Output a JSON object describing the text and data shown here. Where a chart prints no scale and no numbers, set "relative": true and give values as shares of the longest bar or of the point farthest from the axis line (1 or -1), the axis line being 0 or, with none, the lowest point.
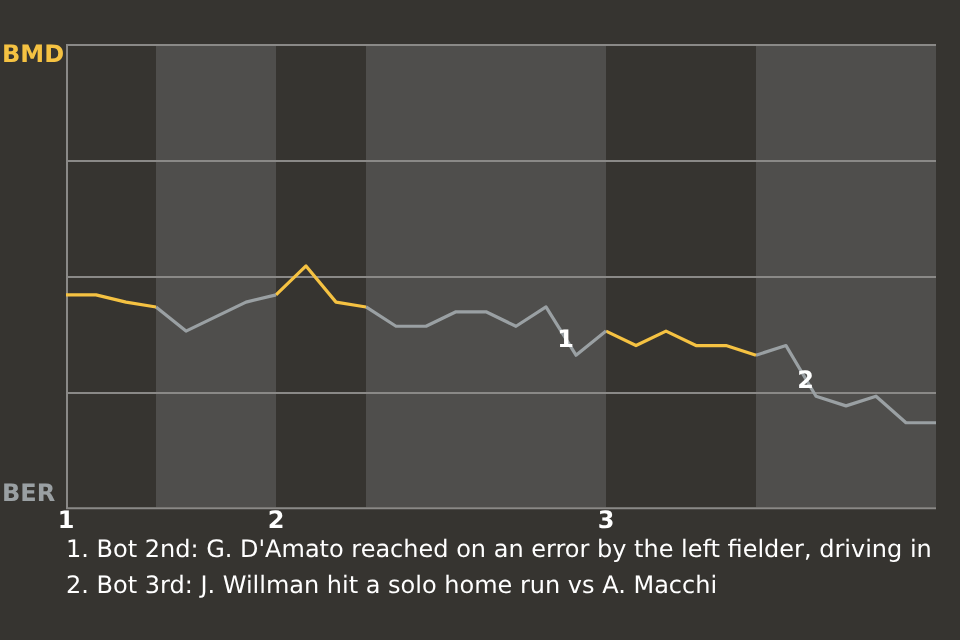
{
  "chart_data": {
    "type": "line",
    "relative": true,
    "categories": [
      "1",
      null,
      null,
      null,
      null,
      null,
      null,
      "2",
      null,
      null,
      null,
      null,
      null,
      null,
      null,
      null,
      null,
      null,
      "3",
      null,
      null,
      null,
      null,
      null,
      null,
      null,
      null,
      null,
      null,
      null
    ],
    "legend": false,
    "marker": "none",
    "line_style": "solid",
    "ref_lines": [
      {
        "axis": "y",
        "value": 0.48,
        "color": "#8a8987"
      },
      {
        "axis": "y",
        "value": 0.96,
        "color": "#8a8987"
      },
      {
        "axis": "y",
        "value": 1.44,
        "color": "#8a8987"
      }
    ],
    "series": [
      {
        "color": "#f5c242",
        "values": [
          0.88,
          0.88,
          0.85,
          0.83,
          null,
          null,
          null,
          null,
          null,
          null,
          null,
          null,
          null,
          null,
          null,
          null,
          null,
          null,
          null,
          null,
          null,
          null,
          null,
          null,
          null,
          null,
          null,
          null,
          null,
          null
        ]
      },
      {
        "color": "#9aa0a3",
        "values": [
          null,
          null,
          null,
          0.83,
          0.73,
          0.79,
          0.85,
          0.88,
          null,
          null,
          null,
          null,
          null,
          null,
          null,
          null,
          null,
          null,
          null,
          null,
          null,
          null,
          null,
          null,
          null,
          null,
          null,
          null,
          null,
          null
        ]
      },
      {
        "color": "#f5c242",
        "values": [
          null,
          null,
          null,
          null,
          null,
          null,
          null,
          0.88,
          1,
          0.85,
          0.83,
          null,
          null,
          null,
          null,
          null,
          null,
          null,
          null,
          null,
          null,
          null,
          null,
          null,
          null,
          null,
          null,
          null,
          null,
          null
        ]
      },
      {
        "color": "#9aa0a3",
        "values": [
          null,
          null,
          null,
          null,
          null,
          null,
          null,
          null,
          null,
          null,
          0.83,
          0.75,
          0.75,
          0.81,
          0.81,
          0.75,
          0.83,
          0.63,
          0.73,
          null,
          null,
          null,
          null,
          null,
          null,
          null,
          null,
          null,
          null,
          null
        ]
      },
      {
        "color": "#f5c242",
        "values": [
          null,
          null,
          null,
          null,
          null,
          null,
          null,
          null,
          null,
          null,
          null,
          null,
          null,
          null,
          null,
          null,
          null,
          null,
          0.73,
          0.67,
          0.73,
          0.67,
          0.67,
          0.63,
          null,
          null,
          null,
          null,
          null,
          null
        ]
      },
      {
        "color": "#9aa0a3",
        "values": [
          null,
          null,
          null,
          null,
          null,
          null,
          null,
          null,
          null,
          null,
          null,
          null,
          null,
          null,
          null,
          null,
          null,
          null,
          null,
          null,
          null,
          null,
          null,
          0.63,
          0.67,
          0.46,
          0.42,
          0.46,
          0.35,
          0.35
        ]
      }
    ],
    "annotations": [
      "BMD",
      "BER",
      {
        "text": "1",
        "y": 0.63
      },
      {
        "text": "2",
        "y": 0.46
      },
      "1. Bot 2nd: G. D'Amato reached on an error by the left fielder, driving in",
      "2. Bot 3rd: J. Willman hit a solo home run vs A. Macchi"
    ]
  }
}
